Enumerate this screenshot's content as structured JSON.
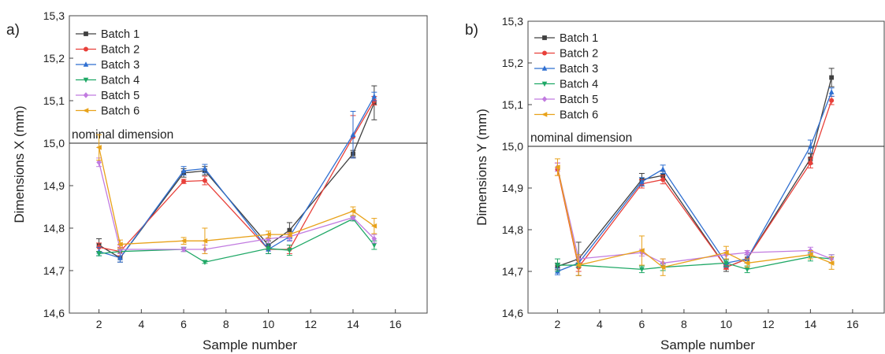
{
  "chart_data": [
    {
      "type": "line",
      "panel_label": "a)",
      "xlabel": "Sample number",
      "ylabel": "Dimensions X (mm)",
      "xlim": [
        0.6,
        17.5
      ],
      "ylim": [
        14.6,
        15.3
      ],
      "x_ticks": [
        "2",
        "4",
        "6",
        "8",
        "10",
        "12",
        "14",
        "16"
      ],
      "y_ticks": [
        "14,6",
        "14,7",
        "14,8",
        "14,9",
        "15,0",
        "15,1",
        "15,2",
        "15,3"
      ],
      "reference_line": {
        "value": 15.0,
        "label": "nominal dimension"
      },
      "legend_position": "top-left",
      "x": [
        2,
        3,
        6,
        7,
        10,
        11,
        14,
        15
      ],
      "series": [
        {
          "name": "Batch 1",
          "color": "#404040",
          "marker": "square",
          "values": [
            14.76,
            14.73,
            14.93,
            14.935,
            14.76,
            14.795,
            14.975,
            15.095
          ],
          "errors": [
            0.015,
            0.01,
            0.01,
            0.01,
            0.01,
            0.018,
            0.008,
            0.04
          ]
        },
        {
          "name": "Batch 2",
          "color": "#e8403a",
          "marker": "circle",
          "values": [
            14.755,
            14.745,
            14.91,
            14.912,
            14.75,
            14.75,
            15.015,
            15.1
          ],
          "errors": [
            0.01,
            0.01,
            0.005,
            0.01,
            0.01,
            0.01,
            0.05,
            0.01
          ]
        },
        {
          "name": "Batch 3",
          "color": "#2f6fd1",
          "marker": "triangle-up",
          "values": [
            14.745,
            14.73,
            14.935,
            14.94,
            14.75,
            14.78,
            15.02,
            15.11
          ],
          "errors": [
            0.01,
            0.01,
            0.01,
            0.01,
            0.01,
            0.01,
            0.055,
            0.01
          ]
        },
        {
          "name": "Batch 4",
          "color": "#1fa866",
          "marker": "triangle-down",
          "values": [
            14.74,
            14.745,
            14.75,
            14.72,
            14.752,
            14.748,
            14.822,
            14.76
          ],
          "errors": [
            0.005,
            0.005,
            0.005,
            0.003,
            0.012,
            0.012,
            0.005,
            0.01
          ]
        },
        {
          "name": "Batch 5",
          "color": "#c17be0",
          "marker": "diamond",
          "values": [
            14.955,
            14.75,
            14.75,
            14.75,
            14.775,
            14.78,
            14.825,
            14.775
          ],
          "errors": [
            0.01,
            0.01,
            0.005,
            0.01,
            0.01,
            0.008,
            0.005,
            0.01
          ]
        },
        {
          "name": "Batch 6",
          "color": "#e8a21a",
          "marker": "left-triangle",
          "values": [
            14.99,
            14.762,
            14.77,
            14.77,
            14.785,
            14.785,
            14.84,
            14.805
          ],
          "errors": [
            0.03,
            0.01,
            0.008,
            0.03,
            0.008,
            0.005,
            0.01,
            0.018
          ]
        }
      ]
    },
    {
      "type": "line",
      "panel_label": "b)",
      "xlabel": "Sample number",
      "ylabel": "Dimensions Y (mm)",
      "xlim": [
        0.6,
        17.5
      ],
      "ylim": [
        14.6,
        15.3
      ],
      "x_ticks": [
        "2",
        "4",
        "6",
        "8",
        "10",
        "12",
        "14",
        "16"
      ],
      "y_ticks": [
        "14,6",
        "14,7",
        "14,8",
        "14,9",
        "15,0",
        "15,1",
        "15,2",
        "15,3"
      ],
      "reference_line": {
        "value": 15.0,
        "label": "nominal dimension"
      },
      "legend_position": "top-left",
      "x": [
        2,
        3,
        6,
        7,
        10,
        11,
        14,
        15
      ],
      "series": [
        {
          "name": "Batch 1",
          "color": "#404040",
          "marker": "square",
          "values": [
            14.712,
            14.73,
            14.92,
            14.93,
            14.71,
            14.73,
            14.97,
            15.165
          ],
          "errors": [
            0.008,
            0.04,
            0.015,
            0.01,
            0.01,
            0.01,
            0.012,
            0.022
          ]
        },
        {
          "name": "Batch 2",
          "color": "#e8403a",
          "marker": "circle",
          "values": [
            14.945,
            14.71,
            14.91,
            14.92,
            14.71,
            14.73,
            14.96,
            15.11
          ],
          "errors": [
            0.015,
            0.01,
            0.01,
            0.01,
            0.005,
            0.01,
            0.012,
            0.01
          ]
        },
        {
          "name": "Batch 3",
          "color": "#2f6fd1",
          "marker": "triangle-up",
          "values": [
            14.7,
            14.72,
            14.915,
            14.945,
            14.72,
            14.73,
            15.0,
            15.13
          ],
          "errors": [
            0.008,
            0.01,
            0.01,
            0.01,
            0.01,
            0.01,
            0.015,
            0.01
          ]
        },
        {
          "name": "Batch 4",
          "color": "#1fa866",
          "marker": "triangle-down",
          "values": [
            14.715,
            14.715,
            14.705,
            14.71,
            14.72,
            14.705,
            14.735,
            14.73
          ],
          "errors": [
            0.015,
            0.005,
            0.008,
            0.008,
            0.008,
            0.008,
            0.01,
            0.01
          ]
        },
        {
          "name": "Batch 5",
          "color": "#c17be0",
          "marker": "diamond",
          "values": [
            14.95,
            14.73,
            14.745,
            14.72,
            14.74,
            14.745,
            14.75,
            14.73
          ],
          "errors": [
            0.01,
            0.008,
            0.008,
            0.01,
            0.01,
            0.005,
            0.008,
            0.01
          ]
        },
        {
          "name": "Batch 6",
          "color": "#e8a21a",
          "marker": "left-triangle",
          "values": [
            14.95,
            14.715,
            14.75,
            14.71,
            14.745,
            14.72,
            14.74,
            14.72
          ],
          "errors": [
            0.02,
            0.025,
            0.035,
            0.02,
            0.015,
            0.01,
            0.01,
            0.015
          ]
        }
      ]
    }
  ]
}
